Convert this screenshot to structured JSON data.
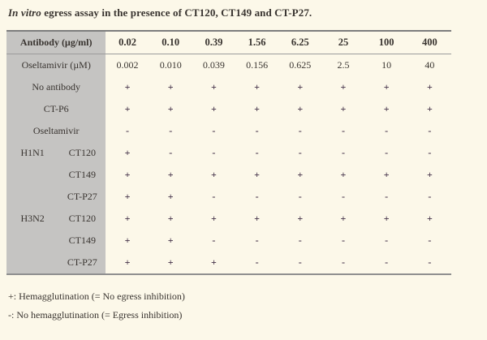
{
  "caption": {
    "italic": "In vitro",
    "rest": " egress assay in the presence of CT120, CT149 and CT-P27."
  },
  "table": {
    "header": {
      "label": "Antibody (µg/ml)",
      "values": [
        "0.02",
        "0.10",
        "0.39",
        "1.56",
        "6.25",
        "25",
        "100",
        "400"
      ]
    },
    "rows": [
      {
        "merged": true,
        "virus": "",
        "label": "Oseltamivir (µM)",
        "numeric": true,
        "values": [
          "0.002",
          "0.010",
          "0.039",
          "0.156",
          "0.625",
          "2.5",
          "10",
          "40"
        ]
      },
      {
        "merged": true,
        "virus": "",
        "label": "No antibody",
        "values": [
          "+",
          "+",
          "+",
          "+",
          "+",
          "+",
          "+",
          "+"
        ]
      },
      {
        "merged": true,
        "virus": "",
        "label": "CT-P6",
        "values": [
          "+",
          "+",
          "+",
          "+",
          "+",
          "+",
          "+",
          "+"
        ]
      },
      {
        "merged": true,
        "virus": "",
        "label": "Oseltamivir",
        "values": [
          "-",
          "-",
          "-",
          "-",
          "-",
          "-",
          "-",
          "-"
        ]
      },
      {
        "merged": false,
        "virus": "H1N1",
        "label": "CT120",
        "values": [
          "+",
          "-",
          "-",
          "-",
          "-",
          "-",
          "-",
          "-"
        ]
      },
      {
        "merged": false,
        "virus": "",
        "label": "CT149",
        "values": [
          "+",
          "+",
          "+",
          "+",
          "+",
          "+",
          "+",
          "+"
        ]
      },
      {
        "merged": false,
        "virus": "",
        "label": "CT-P27",
        "values": [
          "+",
          "+",
          "-",
          "-",
          "-",
          "-",
          "-",
          "-"
        ]
      },
      {
        "merged": false,
        "virus": "H3N2",
        "label": "CT120",
        "values": [
          "+",
          "+",
          "+",
          "+",
          "+",
          "+",
          "+",
          "+"
        ]
      },
      {
        "merged": false,
        "virus": "",
        "label": "CT149",
        "values": [
          "+",
          "+",
          "-",
          "-",
          "-",
          "-",
          "-",
          "-"
        ]
      },
      {
        "merged": false,
        "virus": "",
        "label": "CT-P27",
        "values": [
          "+",
          "+",
          "+",
          "-",
          "-",
          "-",
          "-",
          "-"
        ]
      }
    ]
  },
  "footnotes": {
    "plus": "+: Hemagglutination (= No egress inhibition)",
    "minus": "-: No hemagglutination (= Egress inhibition)"
  },
  "colors": {
    "background": "#fcf8e9",
    "label_cell": "#c5c4c2",
    "border_dark": "#7d7d7d",
    "border_light": "#9b9b9b",
    "text": "#393430",
    "symbol": "#46344a"
  }
}
